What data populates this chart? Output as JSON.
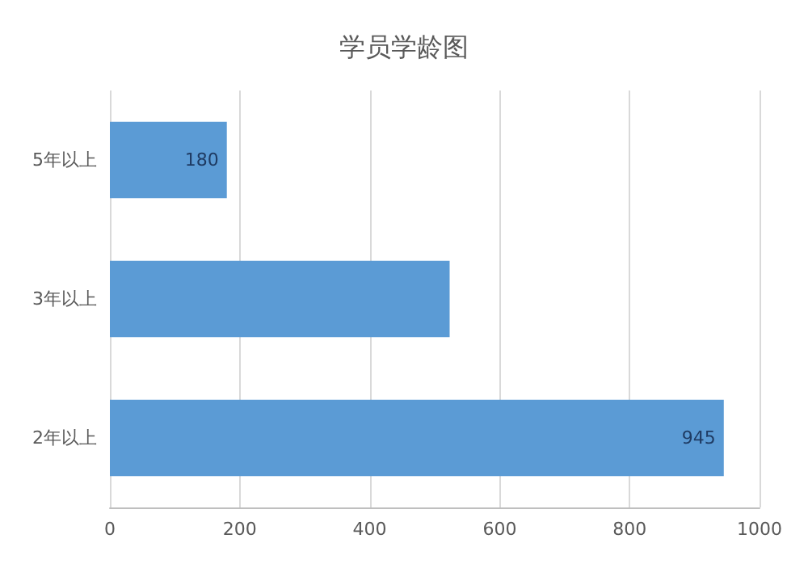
{
  "chart_data": {
    "type": "bar",
    "orientation": "horizontal",
    "title": "学员学龄图",
    "categories": [
      "5年以上",
      "3年以上",
      "2年以上"
    ],
    "values": [
      180,
      523,
      945
    ],
    "value_labels": [
      "180",
      null,
      "945"
    ],
    "color": "#5b9bd5",
    "xlim": [
      0,
      1000
    ],
    "xticks": [
      0,
      200,
      400,
      600,
      800,
      1000
    ],
    "grid": "x"
  }
}
